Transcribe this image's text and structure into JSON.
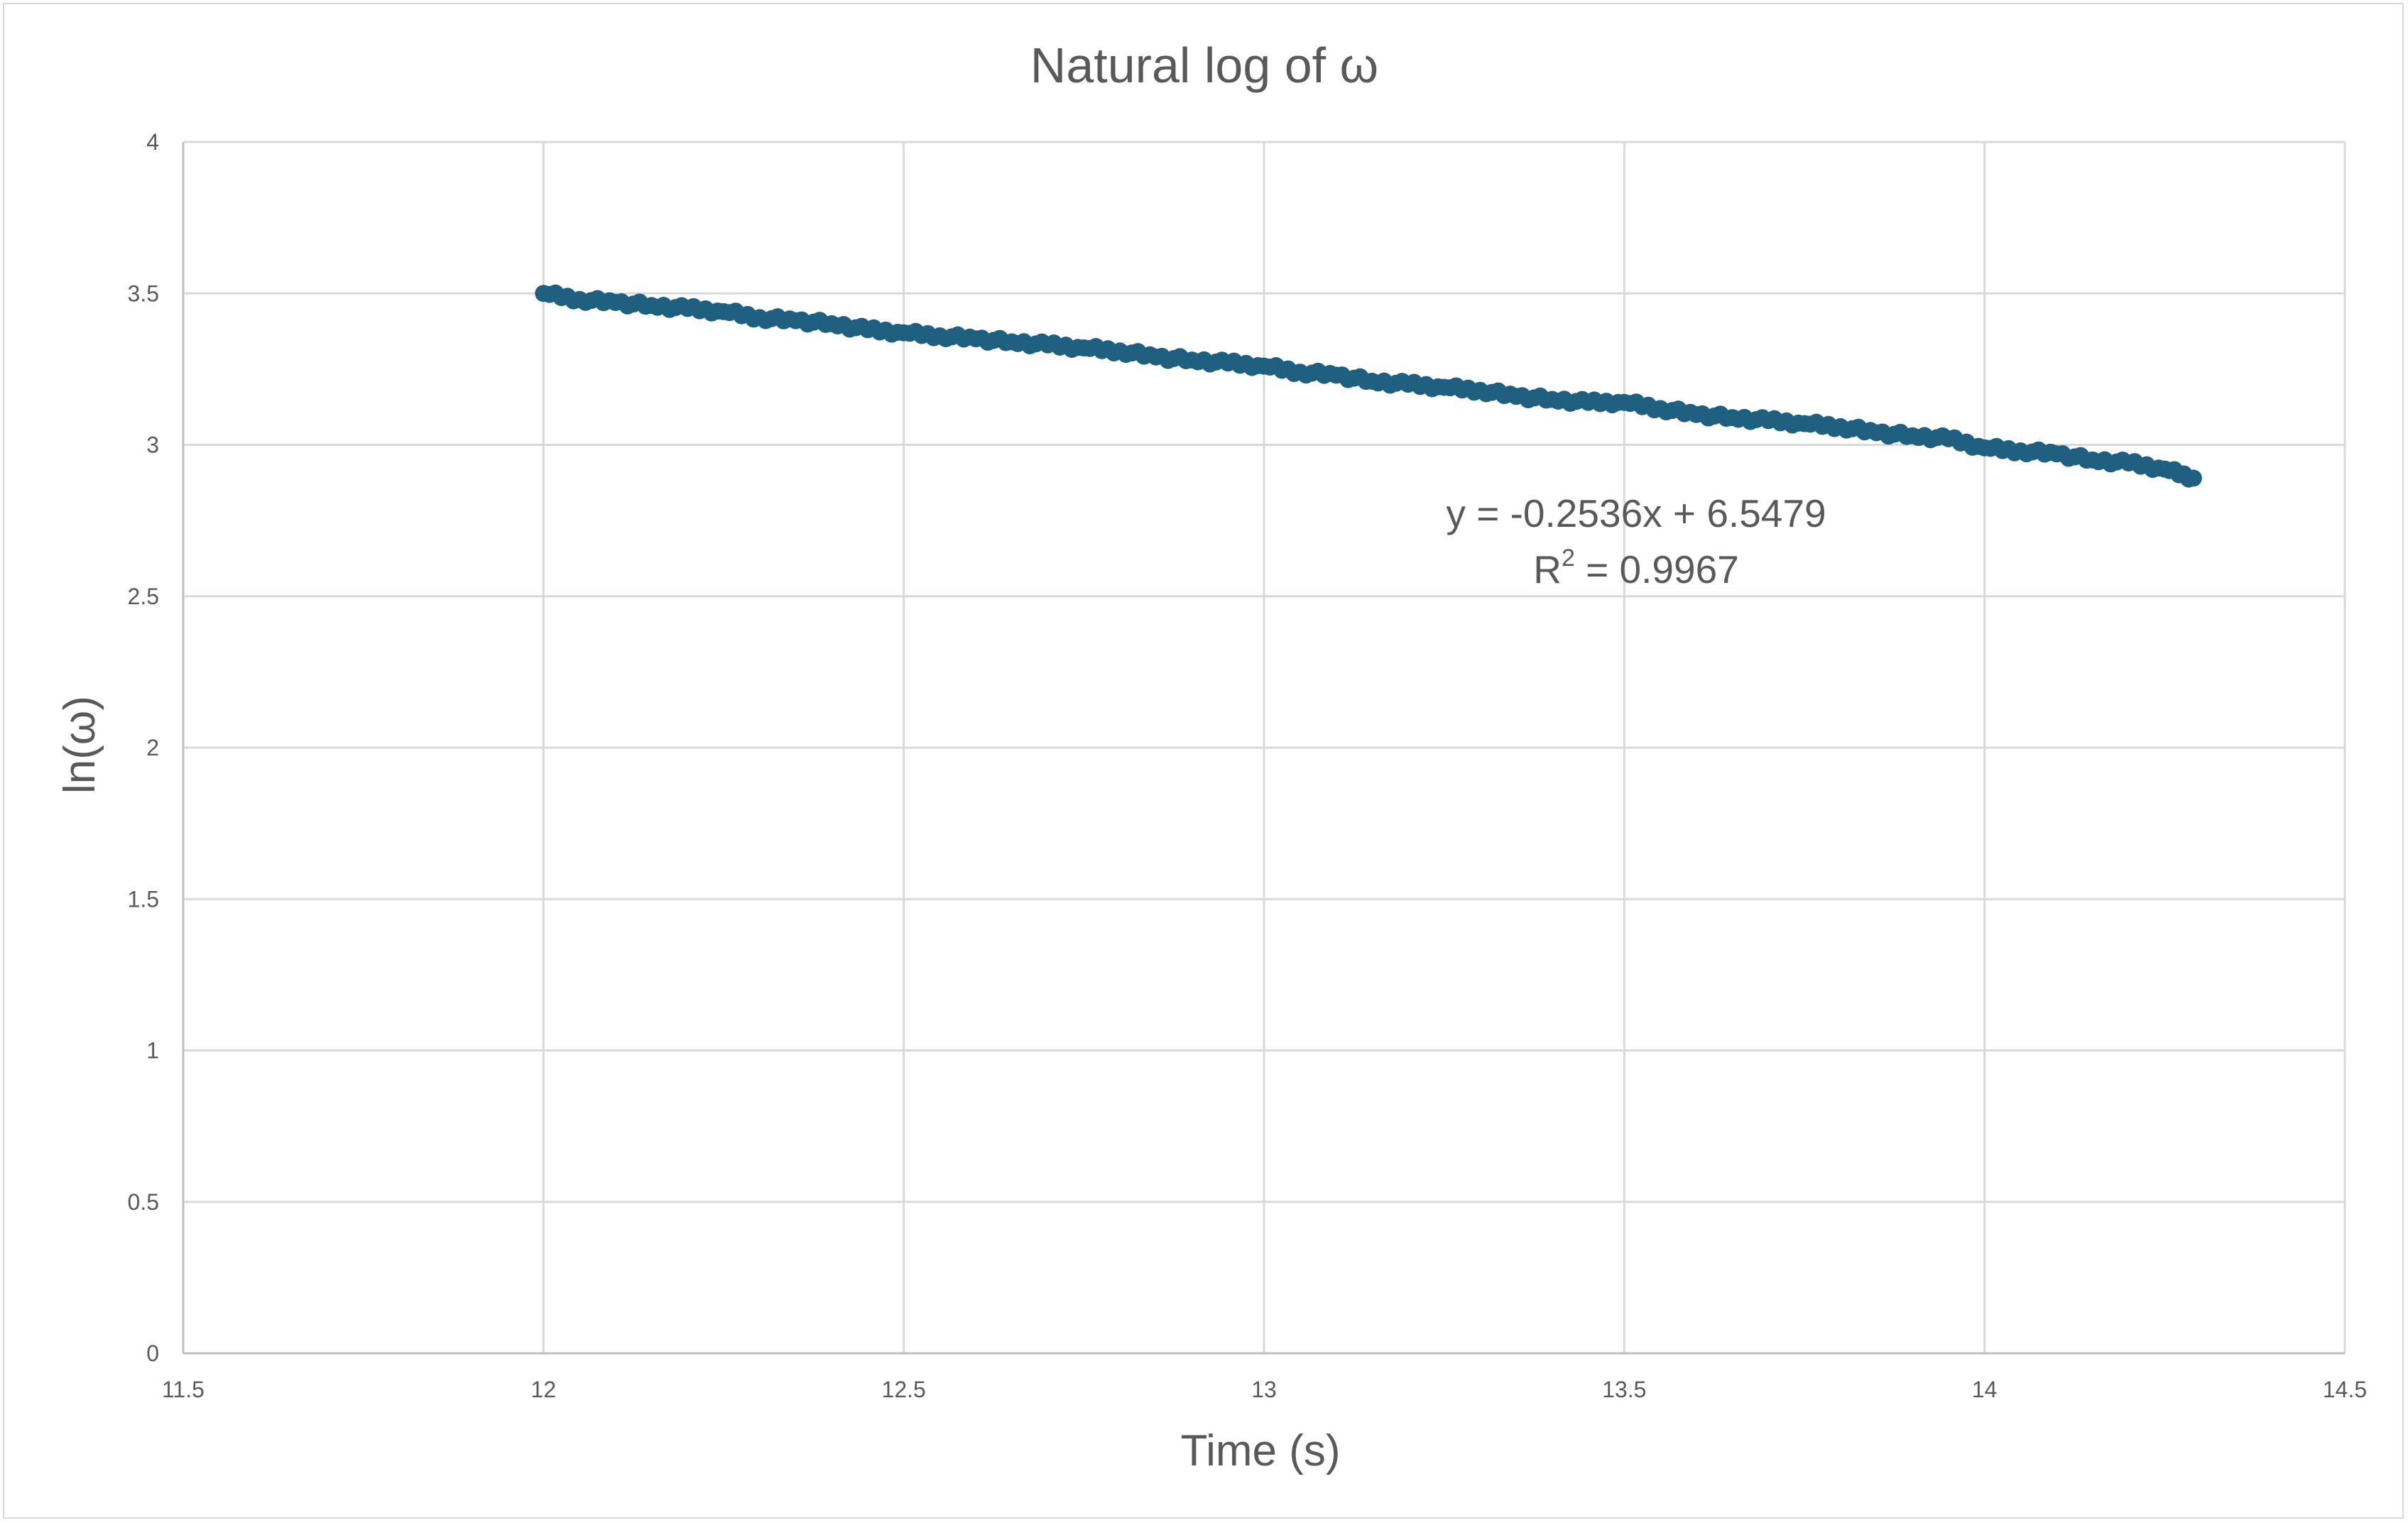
{
  "chart_data": {
    "type": "scatter",
    "title": "Natural log of ω",
    "xlabel": "Time (s)",
    "ylabel": "ln(ω)",
    "xlim": [
      11.5,
      14.5
    ],
    "ylim": [
      0,
      4
    ],
    "x_ticks": [
      "11.5",
      "12",
      "12.5",
      "13",
      "13.5",
      "14",
      "14.5"
    ],
    "y_ticks": [
      "0",
      "0.5",
      "1",
      "1.5",
      "2",
      "2.5",
      "3",
      "3.5",
      "4"
    ],
    "x_tick_values": [
      11.5,
      12,
      12.5,
      13,
      13.5,
      14,
      14.5
    ],
    "y_tick_values": [
      0,
      0.5,
      1,
      1.5,
      2,
      2.5,
      3,
      3.5,
      4
    ],
    "grid": true,
    "legend": "none",
    "marker_color": "#1f5f7f",
    "trendline": {
      "equation": "y = -0.2536x + 6.5479",
      "r_squared_label": "R",
      "r_squared_sup": "2",
      "r_squared_value": " = 0.9967"
    },
    "series": [
      {
        "x": [
          12.0,
          12.05,
          12.1,
          12.15,
          12.2,
          12.25,
          12.3,
          12.35,
          12.4,
          12.45,
          12.5,
          12.55,
          12.6,
          12.65,
          12.7,
          12.75,
          12.8,
          12.85,
          12.9,
          12.95,
          13.0,
          13.05,
          13.1,
          13.15,
          13.2,
          13.25,
          13.3,
          13.35,
          13.4,
          13.45,
          13.5,
          13.55,
          13.6,
          13.65,
          13.7,
          13.75,
          13.8,
          13.85,
          13.9,
          13.95,
          14.0,
          14.05,
          14.1,
          14.15,
          14.2,
          14.25,
          14.29
        ],
        "y": [
          3.5,
          3.48,
          3.47,
          3.46,
          3.45,
          3.44,
          3.42,
          3.41,
          3.4,
          3.38,
          3.37,
          3.36,
          3.35,
          3.34,
          3.33,
          3.32,
          3.31,
          3.29,
          3.28,
          3.27,
          3.26,
          3.24,
          3.23,
          3.21,
          3.2,
          3.19,
          3.18,
          3.16,
          3.15,
          3.14,
          3.14,
          3.12,
          3.1,
          3.09,
          3.08,
          3.07,
          3.06,
          3.04,
          3.03,
          3.02,
          2.99,
          2.98,
          2.97,
          2.95,
          2.94,
          2.92,
          2.89
        ]
      }
    ]
  }
}
